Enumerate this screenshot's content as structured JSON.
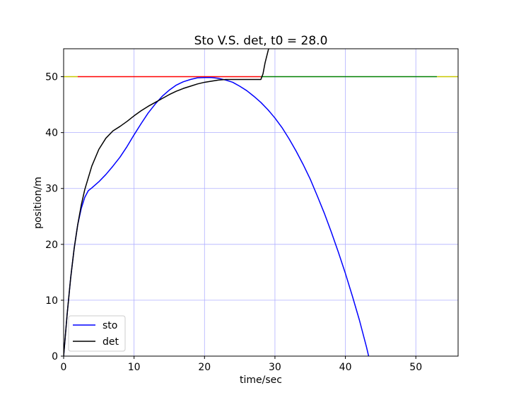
{
  "chart_data": {
    "type": "line",
    "title": "Sto V.S. det, t0 = 28.0",
    "xlabel": "time/sec",
    "ylabel": "position/m",
    "xlim": [
      0,
      56
    ],
    "ylim": [
      0,
      55
    ],
    "xticks": [
      0,
      10,
      20,
      30,
      40,
      50
    ],
    "yticks": [
      0,
      10,
      20,
      30,
      40,
      50
    ],
    "grid": true,
    "legend_position": "lower-left",
    "colors": {
      "sto": "#0000ff",
      "det": "#000000",
      "grid": "#b0b0ff",
      "red_segment": "#ff0000",
      "green_segment": "#008000",
      "yellow_segment": "#c8c800"
    },
    "series": [
      {
        "name": "sto",
        "color": "#0000ff",
        "x": [
          0,
          0.5,
          1,
          1.5,
          2,
          2.5,
          3,
          3.5,
          4,
          5,
          6,
          7,
          8,
          9,
          10,
          11,
          12,
          13,
          14,
          15,
          16,
          17,
          18,
          19,
          20,
          21,
          22,
          23,
          24,
          25,
          26,
          27,
          28,
          29,
          30,
          31,
          32,
          33,
          34,
          35,
          36,
          37,
          38,
          39,
          40,
          41,
          42,
          43,
          43.3
        ],
        "y": [
          0,
          7.5,
          14,
          19.3,
          23.5,
          26.4,
          28.4,
          29.6,
          30.1,
          31.2,
          32.5,
          34.0,
          35.6,
          37.5,
          39.6,
          41.6,
          43.5,
          45.1,
          46.5,
          47.6,
          48.5,
          49.1,
          49.5,
          49.8,
          49.85,
          49.85,
          49.7,
          49.4,
          49.0,
          48.3,
          47.5,
          46.5,
          45.4,
          44.1,
          42.6,
          40.9,
          38.9,
          36.7,
          34.3,
          31.7,
          28.7,
          25.6,
          22.2,
          18.6,
          14.8,
          10.7,
          6.4,
          1.6,
          0
        ]
      },
      {
        "name": "det",
        "color": "#000000",
        "x": [
          0,
          0.5,
          1,
          1.5,
          2,
          2.5,
          3,
          4,
          5,
          6,
          7,
          8,
          9,
          10,
          11,
          12,
          13,
          14,
          15,
          16,
          17,
          18,
          19,
          20,
          21,
          22,
          23,
          24,
          25,
          26,
          27,
          28,
          28.3,
          28.6,
          29.0,
          29.2
        ],
        "y": [
          0,
          7.5,
          14,
          19.3,
          23.5,
          27.0,
          29.8,
          34.0,
          37.0,
          39.0,
          40.3,
          41.1,
          42.0,
          43.0,
          43.9,
          44.7,
          45.4,
          46.1,
          46.8,
          47.4,
          47.9,
          48.3,
          48.7,
          49.0,
          49.2,
          49.4,
          49.5,
          49.5,
          49.5,
          49.5,
          49.5,
          49.5,
          50.5,
          52.5,
          54.5,
          55.5
        ]
      }
    ],
    "horizontal_segments": [
      {
        "color": "#c8c800",
        "y": 50,
        "x": [
          0,
          2
        ]
      },
      {
        "color": "#ff0000",
        "y": 50,
        "x": [
          2,
          28
        ]
      },
      {
        "color": "#008000",
        "y": 50,
        "x": [
          28,
          53
        ]
      },
      {
        "color": "#c8c800",
        "y": 50,
        "x": [
          53,
          56
        ]
      }
    ]
  }
}
